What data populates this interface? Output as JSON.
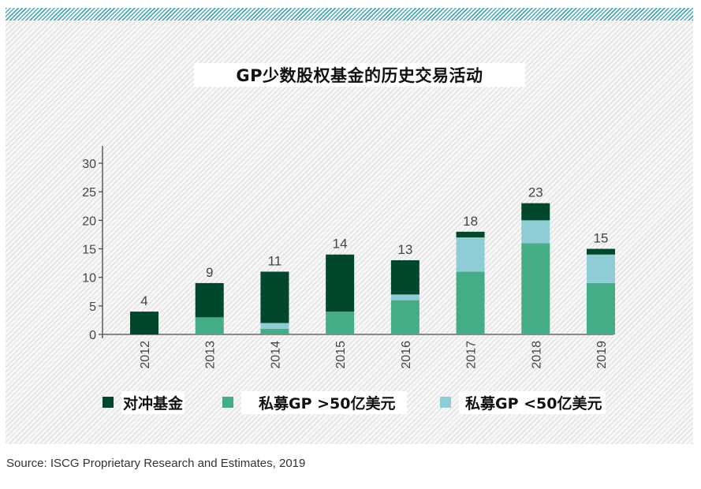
{
  "chart_data": {
    "type": "bar",
    "stacked": true,
    "title": "GP少数股权基金的历史交易活动",
    "xlabel": "",
    "ylabel": "",
    "ylim": [
      0,
      30
    ],
    "yticks": [
      0,
      5,
      10,
      15,
      20,
      25,
      30
    ],
    "categories": [
      "2012",
      "2013",
      "2014",
      "2015",
      "2016",
      "2017",
      "2018",
      "2019"
    ],
    "series": [
      {
        "name": "私募GP >50亿美元",
        "color": "#44ad86",
        "values": [
          0,
          3,
          1,
          4,
          6,
          11,
          16,
          9
        ]
      },
      {
        "name": "私募GP <50亿美元",
        "color": "#8ecdd6",
        "values": [
          0,
          0,
          1,
          0,
          1,
          6,
          4,
          5
        ]
      },
      {
        "name": "对冲基金",
        "color": "#01472b",
        "values": [
          4,
          6,
          9,
          10,
          6,
          1,
          3,
          1
        ]
      }
    ],
    "totals": [
      4,
      9,
      11,
      14,
      13,
      18,
      23,
      15
    ],
    "legend": {
      "position": "bottom",
      "order": [
        "对冲基金",
        "私募GP >50亿美元",
        "私募GP <50亿美元"
      ]
    },
    "grid": false
  },
  "source": "Source: ISCG Proprietary Research and Estimates, 2019"
}
